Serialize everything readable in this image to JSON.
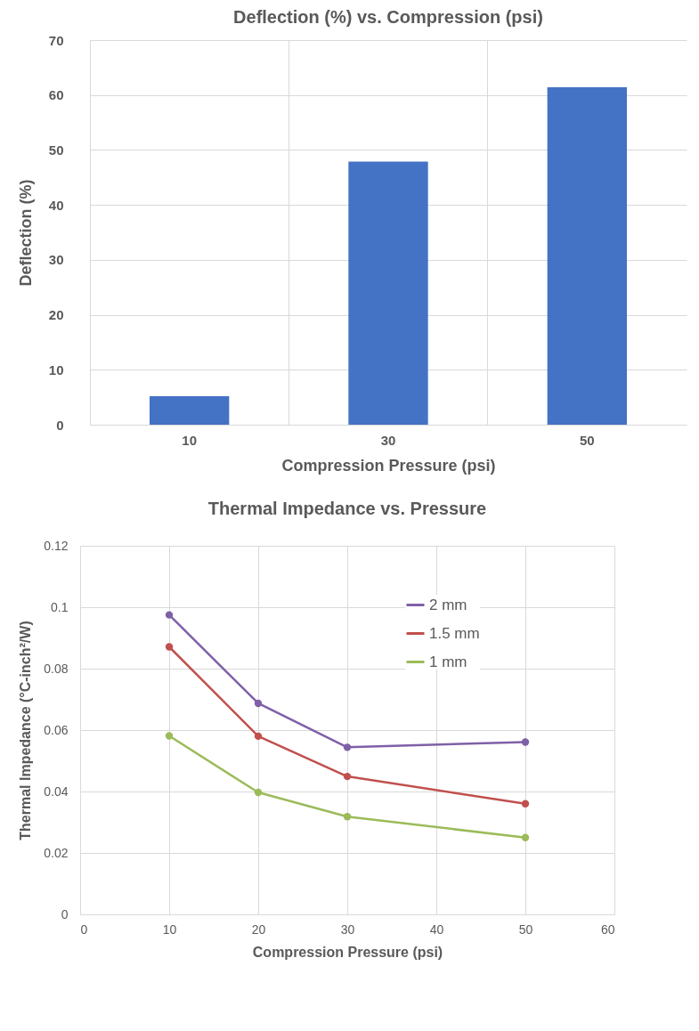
{
  "chart_data": [
    {
      "type": "bar",
      "title": "Deflection (%) vs. Compression  (psi)",
      "xlabel": "Compression Pressure (psi)",
      "ylabel": "Deflection (%)",
      "categories": [
        "10",
        "30",
        "50"
      ],
      "values": [
        5.2,
        47.9,
        61.4
      ],
      "color": "#4472c4",
      "ylim": [
        0,
        70
      ],
      "yticks": [
        0,
        10,
        20,
        30,
        40,
        50,
        60,
        70
      ],
      "grid": true
    },
    {
      "type": "line",
      "title": "Thermal Impedance vs. Pressure",
      "xlabel": "Compression Pressure (psi)",
      "ylabel": "Thermal Impedance (°C-inch²/W)",
      "x": [
        10,
        20,
        30,
        50
      ],
      "series": [
        {
          "name": "2 mm",
          "color": "#7f60a8",
          "values": [
            0.0975,
            0.0687,
            0.0544,
            0.0561
          ]
        },
        {
          "name": "1.5 mm",
          "color": "#c0504d",
          "values": [
            0.0871,
            0.058,
            0.0449,
            0.036
          ]
        },
        {
          "name": "1 mm",
          "color": "#9bbb59",
          "values": [
            0.0581,
            0.0397,
            0.0318,
            0.025
          ]
        }
      ],
      "xlim": [
        0,
        60
      ],
      "xticks": [
        0,
        10,
        20,
        30,
        40,
        50,
        60
      ],
      "ylim": [
        0,
        0.12
      ],
      "yticks": [
        {
          "value": 0,
          "label": "0"
        },
        0.02,
        0.04,
        0.06,
        0.08,
        {
          "value": 0.1,
          "label": "0.1"
        },
        0.12
      ],
      "grid": true,
      "legend": "top right",
      "marker": "circle",
      "line_style": "solid"
    }
  ]
}
